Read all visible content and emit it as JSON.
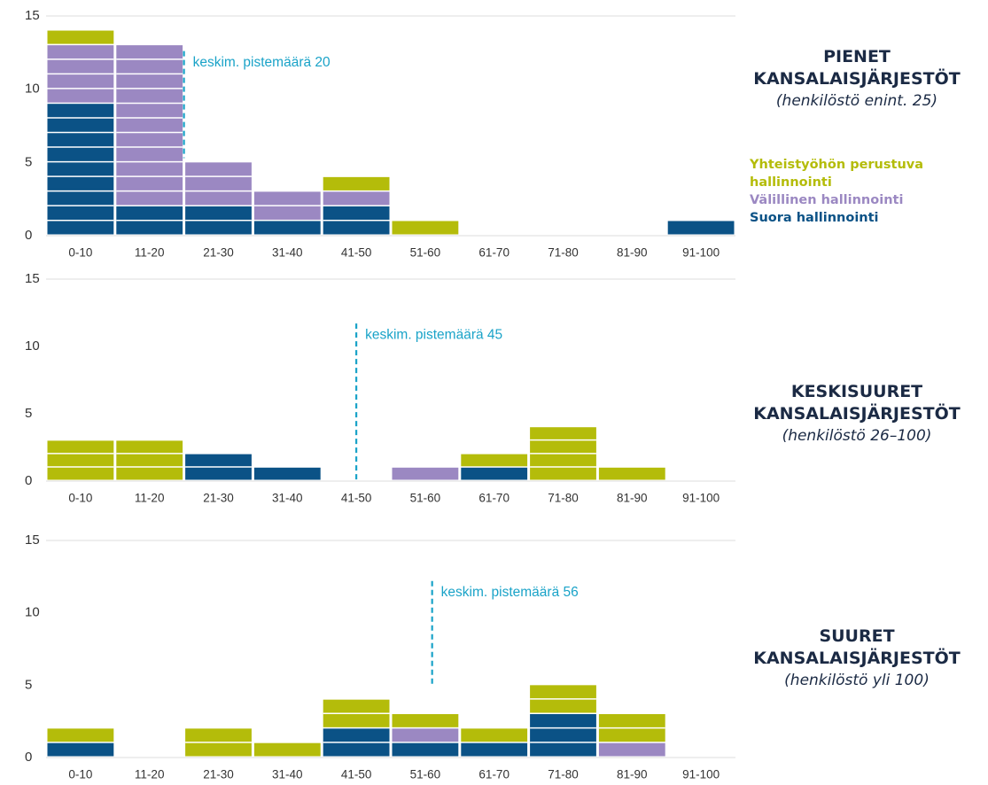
{
  "chart_data": [
    {
      "type": "bar",
      "stacked": true,
      "title": "PIENET KANSALAISJÄRJESTÖT",
      "subtitle": "(henkilöstö enint. 25)",
      "categories": [
        "0-10",
        "11-20",
        "21-30",
        "31-40",
        "41-50",
        "51-60",
        "61-70",
        "71-80",
        "81-90",
        "91-100"
      ],
      "xlim": [
        0,
        100
      ],
      "series": [
        {
          "name": "Suora hallinnointi",
          "color": "#0b5286",
          "values": [
            9,
            2,
            2,
            1,
            2,
            0,
            0,
            0,
            0,
            1
          ]
        },
        {
          "name": "Välillinen hallinnointi",
          "color": "#9b88c2",
          "values": [
            4,
            11,
            3,
            2,
            1,
            0,
            0,
            0,
            0,
            0
          ]
        },
        {
          "name": "Yhteistyöhön perustuva hallinnointi",
          "color": "#b4bc0a",
          "values": [
            1,
            0,
            0,
            0,
            1,
            1,
            0,
            0,
            0,
            0
          ]
        }
      ],
      "ylim": [
        0,
        15
      ],
      "yticks": [
        0,
        5,
        10,
        15
      ],
      "mean_line": {
        "x": 20,
        "label": "keskim. pistemäärä 20"
      }
    },
    {
      "type": "bar",
      "stacked": true,
      "title": "KESKISUURET KANSALAISJÄRJESTÖT",
      "subtitle": "(henkilöstö 26–100)",
      "categories": [
        "0-10",
        "11-20",
        "21-30",
        "31-40",
        "41-50",
        "51-60",
        "61-70",
        "71-80",
        "81-90",
        "91-100"
      ],
      "xlim": [
        0,
        100
      ],
      "series": [
        {
          "name": "Suora hallinnointi",
          "color": "#0b5286",
          "values": [
            0,
            0,
            2,
            1,
            0,
            0,
            1,
            0,
            0,
            0
          ]
        },
        {
          "name": "Välillinen hallinnointi",
          "color": "#9b88c2",
          "values": [
            0,
            0,
            0,
            0,
            0,
            1,
            0,
            0,
            0,
            0
          ]
        },
        {
          "name": "Yhteistyöhön perustuva hallinnointi",
          "color": "#b4bc0a",
          "values": [
            3,
            3,
            0,
            0,
            0,
            0,
            1,
            4,
            1,
            0
          ]
        }
      ],
      "ylim": [
        0,
        15
      ],
      "yticks": [
        0,
        5,
        10,
        15
      ],
      "mean_line": {
        "x": 45,
        "label": "keskim. pistemäärä 45"
      }
    },
    {
      "type": "bar",
      "stacked": true,
      "title": "SUURET KANSALAISJÄRJESTÖT",
      "subtitle": "(henkilöstö yli 100)",
      "categories": [
        "0-10",
        "11-20",
        "21-30",
        "31-40",
        "41-50",
        "51-60",
        "61-70",
        "71-80",
        "81-90",
        "91-100"
      ],
      "xlim": [
        0,
        100
      ],
      "series": [
        {
          "name": "Suora hallinnointi",
          "color": "#0b5286",
          "values": [
            1,
            0,
            0,
            0,
            2,
            1,
            1,
            3,
            0,
            0
          ]
        },
        {
          "name": "Välillinen hallinnointi",
          "color": "#9b88c2",
          "values": [
            0,
            0,
            0,
            0,
            0,
            1,
            0,
            0,
            1,
            0
          ]
        },
        {
          "name": "Yhteistyöhön perustuva hallinnointi",
          "color": "#b4bc0a",
          "values": [
            1,
            0,
            2,
            1,
            2,
            1,
            1,
            2,
            2,
            0
          ]
        }
      ],
      "ylim": [
        0,
        15
      ],
      "yticks": [
        0,
        5,
        10,
        15
      ],
      "mean_line": {
        "x": 56,
        "label": "keskim. pistemäärä 56"
      }
    }
  ]
}
